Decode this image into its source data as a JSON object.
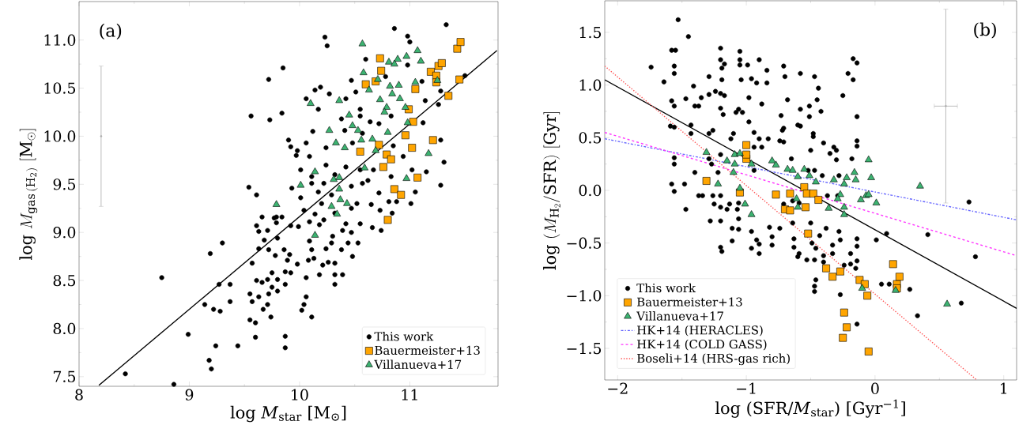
{
  "chart_data": [
    {
      "type": "scatter",
      "xlabel": "log *M*$_{star}$ [M$_{⊙}$]",
      "ylabel": "\\mathrm{log}\\ M_{\\mathrm{gas\\,(H_2)}}\\ [\\mathrm{M}_\\odot]",
      "annotations": [
        "(a)"
      ],
      "legend": "bottom right",
      "xlim": [
        8,
        11.8
      ],
      "ylim": [
        7.4,
        11.4
      ],
      "xticks": [
        8,
        9,
        10,
        11
      ],
      "yticks": [
        {
          "value": 7.5,
          "label": "7.5"
        },
        {
          "value": 8,
          "label": "8.0"
        },
        {
          "value": 8.5,
          "label": "8.5"
        },
        {
          "value": 9,
          "label": "9.0"
        },
        {
          "value": 9.5,
          "label": "9.5"
        },
        {
          "value": 10,
          "label": "10.0"
        },
        {
          "value": 10.5,
          "label": "10.5"
        },
        {
          "value": 11,
          "label": "11.0"
        }
      ],
      "series": [
        {
          "name": "This work",
          "color": "#000000",
          "marker": "circle",
          "x": [
            10.86,
            11.33,
            10.23,
            10.25,
            10.98,
            11.0,
            9.85,
            9.72,
            10.14,
            10.19,
            10.27,
            9.56,
            9.73,
            9.84,
            10.6,
            10.47,
            10.51,
            10.78,
            10.98,
            11.11,
            11.5,
            11.28,
            11.14,
            11.26,
            10.06,
            10.17,
            10.42,
            10.55,
            10.55,
            10.38,
            10.64,
            10.72,
            10.83,
            11.12,
            11.28,
            11.31,
            11.28,
            11.15,
            10.12,
            9.9,
            9.92,
            10.06,
            9.98,
            9.97,
            10.09,
            10.24,
            10.41,
            10.48,
            10.57,
            10.85,
            10.94,
            11.02,
            11.05,
            10.83,
            10.01,
            10.11,
            10.24,
            10.32,
            10.42,
            10.55,
            10.67,
            9.93,
            10.11,
            10.22,
            10.57,
            10.62,
            10.72,
            10.81,
            10.88,
            11.01,
            10.47,
            10.29,
            10.17,
            10.01,
            9.61,
            9.54,
            10.2,
            10.52,
            10.65,
            9.66,
            9.79,
            9.84,
            10.04,
            10.14,
            10.32,
            10.47,
            10.73,
            10.84,
            9.77,
            9.61,
            9.63,
            9.71,
            9.79,
            9.92,
            9.99,
            10.09,
            10.22,
            10.18,
            10.42,
            10.55,
            10.66,
            10.74,
            10.47,
            10.39,
            10.3,
            9.3,
            9.19,
            9.68,
            9.8,
            9.63,
            9.72,
            9.57,
            9.86,
            9.91,
            9.78,
            9.89,
            9.98,
            10.09,
            10.11,
            10.13,
            10.08,
            10.24,
            10.29,
            10.44,
            10.53,
            10.38,
            10.48,
            10.26,
            10.21,
            10.32,
            10.18,
            10.32,
            10.39,
            9.87,
            9.92,
            9.75,
            10.06,
            8.75,
            9.27,
            9.37,
            9.61,
            9.66,
            9.71,
            9.8,
            9.87,
            10.32,
            9.75,
            9.8,
            9.55,
            9.63,
            9.72,
            9.57,
            9.37,
            9.14,
            10.06,
            10.04,
            9.71,
            9.22,
            9.28,
            9.67,
            10.02,
            10.11,
            9.55,
            9.6,
            9.74,
            8.99,
            9.6,
            9.87,
            9.87,
            9.44,
            9.24,
            9.18,
            9.2,
            8.42,
            8.86
          ],
          "values": [
            11.12,
            11.16,
            11.03,
            10.94,
            11.04,
            10.98,
            10.71,
            10.59,
            10.48,
            10.51,
            10.44,
            10.21,
            10.17,
            10.24,
            10.8,
            10.58,
            10.46,
            10.62,
            10.74,
            10.57,
            10.63,
            10.47,
            10.37,
            10.33,
            10.39,
            10.28,
            10.39,
            10.28,
            10.21,
            10.18,
            10.15,
            10.13,
            10.21,
            10.14,
            9.96,
            9.73,
            9.49,
            9.63,
            10.05,
            9.96,
            9.89,
            9.93,
            9.85,
            9.8,
            9.79,
            9.88,
            10.06,
            9.93,
            10.03,
            9.9,
            9.79,
            9.65,
            9.42,
            9.58,
            9.65,
            9.58,
            9.7,
            9.6,
            9.68,
            9.65,
            9.65,
            9.46,
            9.51,
            9.51,
            9.51,
            9.54,
            9.41,
            9.32,
            9.32,
            9.3,
            9.48,
            9.39,
            9.42,
            9.36,
            9.39,
            9.47,
            9.3,
            9.3,
            9.29,
            9.16,
            9.16,
            9.16,
            9.23,
            9.19,
            9.2,
            9.25,
            9.23,
            9.2,
            9.15,
            9.07,
            9.01,
            9.02,
            9.1,
            9.07,
            9.06,
            9.11,
            9.13,
            9.08,
            9.09,
            9.09,
            9.05,
            9.02,
            9.0,
            9.02,
            8.96,
            8.89,
            8.78,
            8.92,
            8.94,
            8.83,
            8.82,
            8.68,
            8.82,
            8.77,
            8.76,
            8.71,
            8.67,
            8.91,
            8.82,
            8.73,
            8.71,
            8.83,
            8.89,
            8.89,
            8.89,
            8.82,
            8.75,
            8.69,
            8.66,
            8.68,
            8.56,
            8.56,
            8.56,
            8.59,
            8.58,
            8.58,
            8.53,
            8.53,
            8.46,
            8.46,
            8.5,
            8.48,
            8.51,
            8.51,
            8.46,
            8.46,
            8.43,
            8.39,
            8.36,
            8.33,
            8.36,
            8.28,
            8.28,
            8.25,
            8.33,
            8.25,
            8.25,
            8.2,
            8.18,
            8.2,
            8.19,
            8.12,
            8.09,
            8.06,
            8.12,
            7.94,
            7.91,
            7.92,
            7.8,
            7.82,
            7.82,
            7.67,
            7.58,
            7.53,
            7.42
          ]
        },
        {
          "name": "Bauermeister+13",
          "color": "#ffa500",
          "marker": "square",
          "x": [
            10.73,
            10.74,
            10.6,
            10.69,
            11.05,
            11.19,
            11.26,
            11.29,
            11.24,
            11.24,
            11.43,
            11.46,
            11.45,
            11.35,
            10.99,
            11.03,
            10.96,
            11.21,
            11.02,
            10.72,
            10.55,
            10.79,
            10.83,
            10.76,
            11.07,
            10.86,
            10.92,
            10.8
          ],
          "values": [
            10.81,
            10.68,
            10.54,
            10.57,
            10.49,
            10.67,
            10.73,
            10.76,
            10.63,
            10.56,
            10.91,
            10.98,
            10.59,
            10.42,
            10.28,
            10.15,
            10.01,
            9.96,
            9.88,
            9.91,
            9.84,
            9.81,
            9.76,
            9.68,
            9.57,
            9.45,
            9.39,
            9.13
          ]
        },
        {
          "name": "Villanueva+17",
          "color": "#3cb371",
          "marker": "triangle",
          "x": [
            10.57,
            11.07,
            10.97,
            10.89,
            10.81,
            10.86,
            11.1,
            10.58,
            10.71,
            10.82,
            10.9,
            10.63,
            10.84,
            10.91,
            10.73,
            11.05,
            11.25,
            10.79,
            10.77,
            10.96,
            10.1,
            10.36,
            10.45,
            10.48,
            10.53,
            10.27,
            10.98,
            10.8,
            10.56,
            10.66,
            10.33,
            10.41,
            10.69,
            11.17,
            10.14,
            10.31,
            10.36,
            10.01,
            10.36,
            10.59,
            10.97,
            10.37,
            10.43,
            10.29,
            9.79,
            10.34,
            10.14
          ],
          "values": [
            10.96,
            10.89,
            10.83,
            10.8,
            10.77,
            10.75,
            10.78,
            10.66,
            10.59,
            10.52,
            10.53,
            10.48,
            10.44,
            10.39,
            10.38,
            10.56,
            10.58,
            10.3,
            10.25,
            10.3,
            10.34,
            10.37,
            10.22,
            10.11,
            10.06,
            10.06,
            10.14,
            10.04,
            9.96,
            9.97,
            9.93,
            9.88,
            9.85,
            9.82,
            9.63,
            9.55,
            9.57,
            9.49,
            9.45,
            9.67,
            9.56,
            9.34,
            9.3,
            9.27,
            9.29,
            9.19,
            8.97
          ]
        },
        {
          "type": "line",
          "color": "#000000",
          "line_style": "solid",
          "x": [
            8.18,
            11.79
          ],
          "values": [
            7.41,
            10.89
          ]
        },
        {
          "color": "#aaaaaa",
          "marker": "none",
          "x": [
            8.2
          ],
          "values": [
            10.0
          ],
          "errors": [
            [
              9.27,
              10.73
            ]
          ]
        }
      ]
    },
    {
      "type": "scatter",
      "xlabel": "log (SFR/*M*$_{star}$) [Gyr$^{−1}$]",
      "ylabel": "\\mathrm{log}\\ (M_{\\mathrm{H}_2}/\\mathrm{SFR})\\ [\\mathrm{Gyr}]",
      "annotations": [
        "(b)"
      ],
      "legend": "bottom left",
      "xlim": [
        -2.1,
        1.1
      ],
      "ylim": [
        -1.8,
        1.8
      ],
      "xticks": [
        {
          "value": -2,
          "label": "−2"
        },
        {
          "value": -1,
          "label": "−1"
        },
        {
          "value": 0,
          "label": "0"
        },
        {
          "value": 1,
          "label": "1"
        }
      ],
      "yticks": [
        {
          "value": -1.5,
          "label": "−1.5"
        },
        {
          "value": -1,
          "label": "−1.0"
        },
        {
          "value": -0.5,
          "label": "−0.5"
        },
        {
          "value": 0,
          "label": "0.0"
        },
        {
          "value": 0.5,
          "label": "0.5"
        },
        {
          "value": 1,
          "label": "1.0"
        },
        {
          "value": 1.5,
          "label": "1.5"
        }
      ],
      "series": [
        {
          "name": "This work",
          "color": "#000000",
          "marker": "circle",
          "x": [
            -1.53,
            -1.45,
            -1.74,
            -1.64,
            -1.58,
            -1.55,
            -1.56,
            -1.56,
            -1.41,
            -1.47,
            -1.58,
            -1.56,
            -1.4,
            -1.37,
            -1.35,
            -1.29,
            -1.29,
            -1.24,
            -1.2,
            -1.2,
            -1.19,
            -1.17,
            -1.19,
            -1.2,
            -1.17,
            -1.2,
            -1.18,
            -1.05,
            -1.05,
            -1.04,
            -1.05,
            -0.99,
            -0.98,
            -1.06,
            -1.03,
            -1.08,
            -0.9,
            -0.96,
            -0.92,
            -0.84,
            -0.84,
            -0.88,
            -0.71,
            -0.7,
            -0.68,
            -0.73,
            -0.58,
            -0.58,
            -0.47,
            -0.44,
            -0.45,
            -0.42,
            -0.51,
            -0.51,
            -0.6,
            -0.58,
            -0.48,
            -0.48,
            -0.4,
            -0.5,
            -0.71,
            -0.72,
            -0.71,
            -0.74,
            -0.17,
            -0.14,
            -0.21,
            -0.17,
            -0.25,
            -0.14,
            -0.14,
            -0.14,
            -0.18,
            -0.32,
            -0.3,
            -0.35,
            -0.3,
            0.73,
            -0.98,
            -0.94,
            -0.9,
            -0.83,
            -0.88,
            -0.94,
            -1.1,
            -1.12,
            -1.29,
            -1.26,
            -1.43,
            -1.43,
            -1.56,
            -1.59,
            -1.56,
            -1.56,
            -1.58,
            -1.56,
            -1.48,
            -1.4,
            -1.37,
            -1.34,
            -1.47,
            -1.26,
            -1.2,
            -1.25,
            -1.2,
            -1.15,
            -1.13,
            -1.07,
            -1.06,
            -0.94,
            -1.27,
            -1.22,
            -1.29,
            -1.2,
            -0.71,
            -0.64,
            -0.59,
            -0.37,
            -0.29,
            -0.28,
            -0.41,
            -0.65,
            -0.52,
            -0.47,
            -1.28,
            -1.2,
            -1.11,
            -1.06,
            -1.06,
            -1.2,
            -1.19,
            -1.11,
            -0.96,
            -0.92,
            -0.9,
            -0.96,
            -0.9,
            -0.82,
            -0.8,
            -0.8,
            -0.74,
            -0.64,
            -0.63,
            -0.63,
            -0.59,
            -0.5,
            -0.49,
            -0.43,
            -0.46,
            -0.4,
            -0.38,
            -0.33,
            -0.33,
            -0.28,
            -0.27,
            -0.19,
            -0.14,
            -0.14,
            -0.14,
            -0.15,
            -0.19,
            -0.24,
            -0.4,
            -0.47,
            -0.53,
            -0.6,
            -0.47,
            -0.47,
            -0.46,
            -0.27,
            0.01,
            0.09,
            0.05,
            0.11,
            0.27,
            0.33,
            0.41,
            0.78,
            0.67,
            -0.14
          ],
          "values": [
            1.62,
            1.46,
            1.17,
            1.03,
            1.33,
            1.33,
            1.18,
            1.11,
            0.99,
            0.87,
            0.85,
            0.8,
            0.8,
            0.8,
            0.88,
            1.08,
            0.91,
            0.94,
            1.35,
            1.24,
            1.16,
            1.2,
            1.05,
            0.92,
            0.9,
            0.78,
            0.72,
            1.32,
            1.24,
            1.05,
            1.19,
            1.19,
            0.88,
            0.77,
            0.74,
            0.74,
            1.24,
            1.06,
            1.02,
            1.14,
            1.02,
            0.82,
            1.18,
            1.08,
            0.86,
            0.71,
            1.11,
            0.77,
            1.08,
            0.97,
            0.86,
            0.75,
            0.8,
            0.7,
            0.62,
            0.61,
            0.54,
            0.51,
            0.45,
            0.38,
            0.59,
            0.57,
            0.46,
            0.47,
            1.25,
            1.21,
            1.11,
            1.05,
            0.9,
            0.7,
            0.47,
            0.42,
            0.3,
            0.41,
            0.38,
            0.35,
            0.29,
            -0.11,
            0.65,
            0.55,
            0.49,
            0.49,
            0.41,
            0.41,
            0.54,
            0.49,
            0.54,
            0.57,
            0.54,
            0.62,
            0.6,
            0.61,
            0.31,
            0.25,
            0.06,
            -0.01,
            0.06,
            0.17,
            -0.05,
            -0.05,
            -0.18,
            -0.05,
            -0.05,
            -0.13,
            -0.16,
            -0.18,
            -0.13,
            -0.18,
            -0.12,
            0.19,
            0.25,
            0.17,
            0.3,
            0.34,
            -0.13,
            -0.1,
            -0.12,
            -0.05,
            -0.05,
            0.14,
            0.14,
            0.3,
            0.19,
            0.19,
            -0.29,
            -0.29,
            -0.36,
            -0.27,
            -0.37,
            -0.54,
            -0.58,
            -0.48,
            -0.39,
            -0.47,
            -0.51,
            -0.55,
            -0.6,
            -0.35,
            -0.44,
            -0.52,
            -0.36,
            -0.31,
            -0.46,
            -0.54,
            -0.6,
            -0.31,
            -0.5,
            -0.43,
            -0.55,
            -0.62,
            -0.36,
            -0.52,
            -0.6,
            -0.39,
            -0.47,
            -0.6,
            -0.46,
            -0.53,
            -0.67,
            -0.74,
            -0.7,
            -0.71,
            -0.68,
            -0.66,
            -0.66,
            -0.63,
            -0.91,
            -0.96,
            -0.85,
            -0.99,
            -0.47,
            -0.41,
            -0.89,
            -0.89,
            -0.94,
            -1.19,
            -0.42,
            -0.63,
            -1.07,
            -1.27
          ]
        },
        {
          "name": "Bauermeister+13",
          "color": "#ffa500",
          "marker": "square",
          "x": [
            -1.0,
            -1.31,
            -1.0,
            -1.0,
            -1.05,
            -0.77,
            -0.66,
            -0.55,
            -0.53,
            -0.48,
            -0.44,
            -0.7,
            -0.66,
            -0.54,
            -0.52,
            -0.38,
            -0.33,
            -0.27,
            -0.12,
            -0.08,
            -0.06,
            0.14,
            0.17,
            0.17,
            0.19,
            -0.24,
            -0.22,
            -0.25,
            -0.05
          ],
          "values": [
            0.43,
            0.09,
            0.3,
            0.34,
            -0.02,
            -0.04,
            -0.03,
            0.03,
            -0.03,
            -0.03,
            -0.09,
            -0.18,
            -0.19,
            -0.16,
            -0.41,
            -0.74,
            -0.82,
            -0.77,
            -0.85,
            -0.89,
            -1.0,
            -0.7,
            -0.89,
            -0.93,
            -0.82,
            -1.16,
            -1.3,
            -1.4,
            -1.53
          ]
        },
        {
          "name": "Villanueva+17",
          "color": "#3cb371",
          "marker": "triangle",
          "x": [
            -1.31,
            -1.22,
            -1.15,
            -1.09,
            -1.09,
            -1.1,
            -1.05,
            -1.05,
            -1.01,
            -0.96,
            -0.96,
            -0.8,
            -0.77,
            -0.68,
            -0.64,
            -0.55,
            -0.6,
            -0.51,
            -0.46,
            -0.61,
            -0.6,
            -0.36,
            -0.32,
            -0.24,
            -0.22,
            -0.16,
            -0.15,
            -0.05,
            -0.03,
            -0.27,
            -0.29,
            -0.24,
            -0.11,
            -0.07,
            -0.05,
            0.01,
            0.35,
            -0.24,
            -0.1,
            0.16,
            0.56
          ],
          "values": [
            0.36,
            0.06,
            0.28,
            0.25,
            0.34,
            0.17,
            0.35,
            0.02,
            -0.13,
            0.25,
            -0.23,
            0.28,
            0.24,
            0.2,
            0.19,
            0.2,
            0.13,
            0.14,
            0.08,
            -0.08,
            -0.16,
            -0.17,
            0.1,
            0.06,
            0.12,
            0.17,
            0.1,
            0.29,
            0.12,
            -0.04,
            -0.08,
            -0.16,
            -0.09,
            -0.05,
            -0.04,
            -0.12,
            0.04,
            -0.23,
            -0.93,
            -0.95,
            -1.08
          ]
        },
        {
          "type": "line",
          "color": "#000000",
          "line_style": "solid",
          "x": [
            -2.1,
            1.1
          ],
          "values": [
            1.05,
            -1.12
          ]
        },
        {
          "type": "line",
          "name": "HK+14 (HERACLES)",
          "color": "#6666ff",
          "line_style": "dashdot",
          "x": [
            -2.1,
            1.1
          ],
          "values": [
            0.49,
            -0.28
          ]
        },
        {
          "type": "line",
          "name": "HK+14 (COLD GASS)",
          "color": "#ff33ff",
          "line_style": "dashed",
          "x": [
            -2.1,
            1.1
          ],
          "values": [
            0.55,
            -0.62
          ]
        },
        {
          "type": "line",
          "name": "Boseli+14 (HRS-gas rich)",
          "color": "#ff5555",
          "line_style": "dotted",
          "x": [
            -2.1,
            0.79
          ],
          "values": [
            1.18,
            -1.8
          ]
        },
        {
          "color": "#aaaaaa",
          "marker": "none",
          "x": [
            0.55
          ],
          "values": [
            0.8
          ],
          "errors": [
            [
              -0.12,
              1.72
            ]
          ],
          "xerrors": [
            [
              0.46,
              0.64
            ]
          ]
        }
      ]
    }
  ]
}
